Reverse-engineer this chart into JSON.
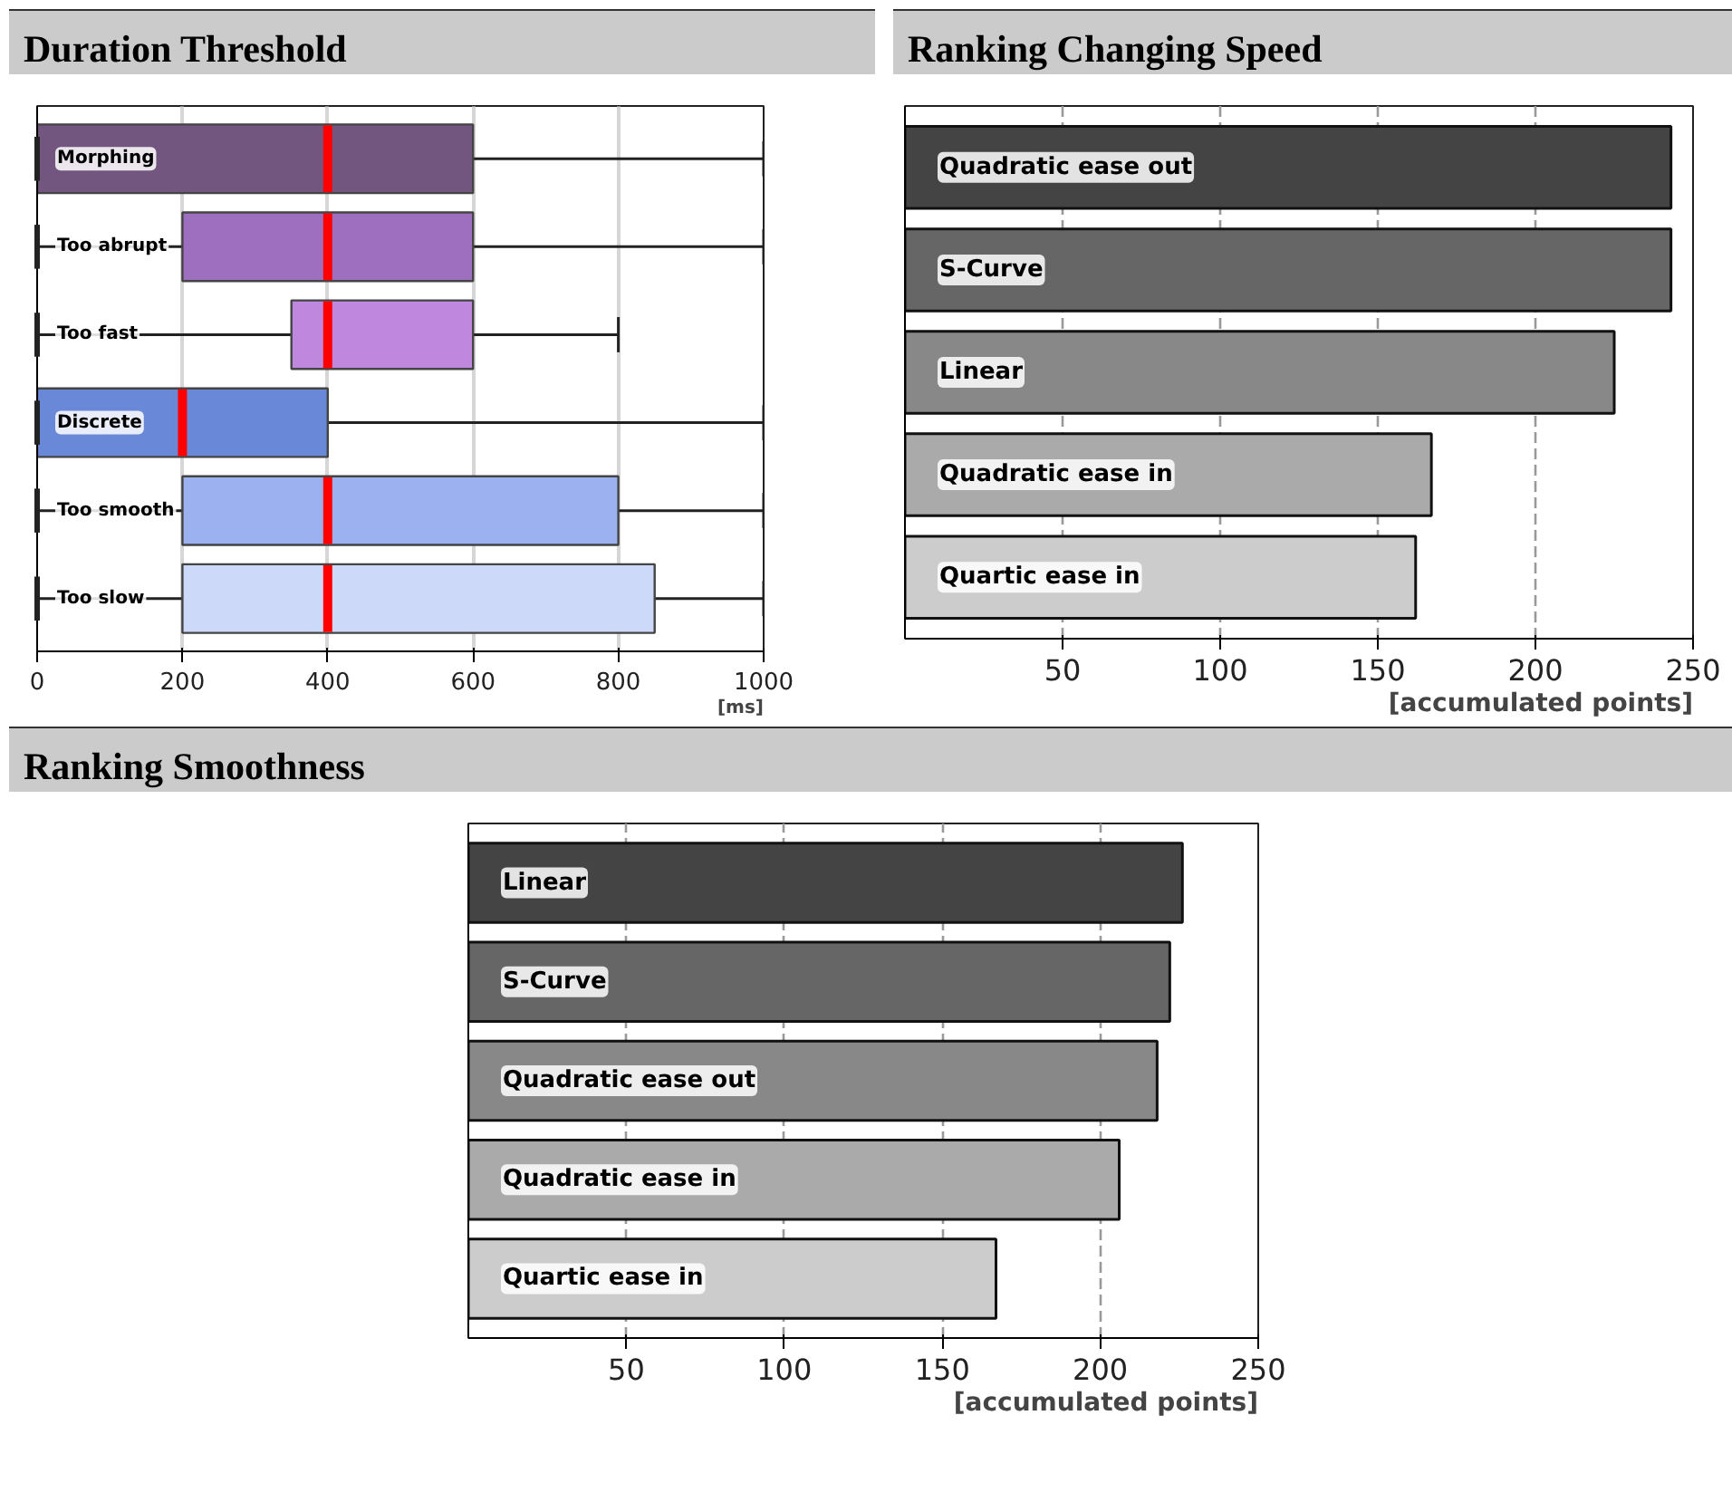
{
  "chart_data": [
    {
      "type": "box",
      "title": "Duration Threshold",
      "xlabel": "[ms]",
      "orientation": "horizontal",
      "categories": [
        "Morphing",
        "Too abrupt",
        "Too fast",
        "Discrete",
        "Too smooth",
        "Too slow"
      ],
      "boxes": [
        {
          "low": 0,
          "q1": 0,
          "median": 400,
          "q3": 600,
          "high": 1000
        },
        {
          "low": 0,
          "q1": 200,
          "median": 400,
          "q3": 600,
          "high": 1000
        },
        {
          "low": 0,
          "q1": 350,
          "median": 400,
          "q3": 600,
          "high": 800
        },
        {
          "low": 0,
          "q1": 0,
          "median": 200,
          "q3": 400,
          "high": 1000
        },
        {
          "low": 0,
          "q1": 200,
          "median": 400,
          "q3": 800,
          "high": 1000
        },
        {
          "low": 0,
          "q1": 200,
          "median": 400,
          "q3": 850,
          "high": 1000
        }
      ],
      "colors": [
        "#73567f",
        "#9e6fbf",
        "#bf88de",
        "#6a88d8",
        "#9bb1f0",
        "#ccd9f8"
      ],
      "xlim": [
        0,
        1000
      ],
      "xticks": [
        0,
        200,
        400,
        600,
        800,
        1000
      ],
      "grid": "x"
    },
    {
      "type": "bar",
      "title": "Ranking Changing Speed",
      "xlabel": "[accumulated points]",
      "orientation": "horizontal",
      "categories": [
        "Quadratic ease out",
        "S-Curve",
        "Linear",
        "Quadratic ease in",
        "Quartic ease in"
      ],
      "values": [
        243,
        243,
        225,
        167,
        162
      ],
      "colors": [
        "#444444",
        "#666666",
        "#888888",
        "#aaaaaa",
        "#cccccc"
      ],
      "xlim": [
        0,
        250
      ],
      "xticks": [
        50,
        100,
        150,
        200,
        250
      ],
      "grid": "x"
    },
    {
      "type": "bar",
      "title": "Ranking Smoothness",
      "xlabel": "[accumulated points]",
      "orientation": "horizontal",
      "categories": [
        "Linear",
        "S-Curve",
        "Quadratic ease out",
        "Quadratic ease in",
        "Quartic ease in"
      ],
      "values": [
        226,
        222,
        218,
        206,
        167
      ],
      "colors": [
        "#444444",
        "#666666",
        "#888888",
        "#aaaaaa",
        "#cccccc"
      ],
      "xlim": [
        0,
        250
      ],
      "xticks": [
        50,
        100,
        150,
        200,
        250
      ],
      "grid": "x"
    }
  ]
}
